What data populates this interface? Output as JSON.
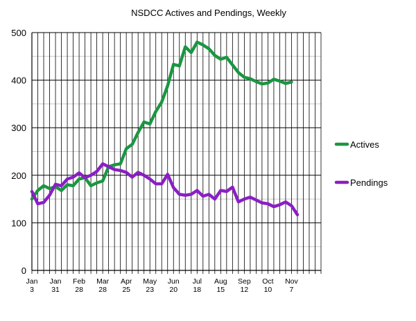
{
  "chart_data": {
    "type": "line",
    "title": "NSDCC Actives and Pendings, Weekly",
    "xlabel": "",
    "ylabel": "",
    "ylim": [
      0,
      500
    ],
    "yticks": [
      0,
      100,
      200,
      300,
      400,
      500
    ],
    "x_tick_labels": [
      {
        "week": 0,
        "line1": "Jan",
        "line2": "3"
      },
      {
        "week": 4,
        "line1": "Jan",
        "line2": "31"
      },
      {
        "week": 8,
        "line1": "Feb",
        "line2": "28"
      },
      {
        "week": 12,
        "line1": "Mar",
        "line2": "28"
      },
      {
        "week": 16,
        "line1": "Apr",
        "line2": "25"
      },
      {
        "week": 20,
        "line1": "May",
        "line2": "23"
      },
      {
        "week": 24,
        "line1": "Jun",
        "line2": "20"
      },
      {
        "week": 28,
        "line1": "Jul",
        "line2": "18"
      },
      {
        "week": 32,
        "line1": "Aug",
        "line2": "15"
      },
      {
        "week": 36,
        "line1": "Sep",
        "line2": "12"
      },
      {
        "week": 40,
        "line1": "Oct",
        "line2": "10"
      },
      {
        "week": 44,
        "line1": "Nov",
        "line2": "7"
      }
    ],
    "x_range": [
      0,
      49
    ],
    "grid": true,
    "legend_position": "right",
    "series": [
      {
        "name": "Actives",
        "color": "#1a9641",
        "values": [
          150,
          168,
          178,
          172,
          176,
          168,
          180,
          178,
          192,
          195,
          178,
          184,
          188,
          218,
          222,
          224,
          256,
          265,
          290,
          312,
          308,
          334,
          354,
          388,
          433,
          430,
          470,
          458,
          480,
          474,
          466,
          452,
          444,
          448,
          432,
          416,
          406,
          403,
          397,
          392,
          394,
          402,
          398,
          393,
          396
        ]
      },
      {
        "name": "Pendings",
        "color": "#8b1ec4",
        "values": [
          166,
          140,
          143,
          158,
          181,
          178,
          192,
          196,
          205,
          195,
          200,
          208,
          224,
          218,
          212,
          210,
          206,
          196,
          206,
          200,
          192,
          182,
          182,
          202,
          174,
          160,
          158,
          160,
          168,
          156,
          160,
          150,
          168,
          166,
          175,
          144,
          150,
          154,
          148,
          142,
          140,
          134,
          138,
          144,
          136,
          117
        ]
      }
    ]
  }
}
